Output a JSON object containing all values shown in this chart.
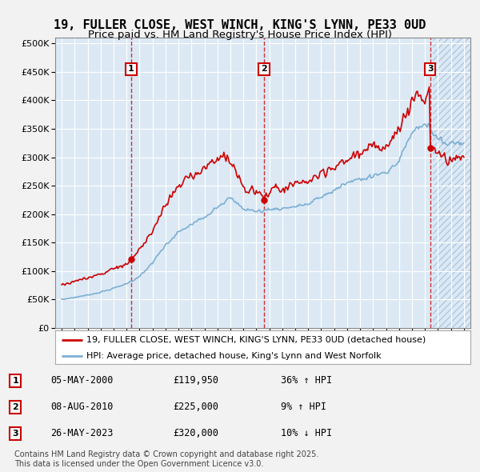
{
  "title": "19, FULLER CLOSE, WEST WINCH, KING'S LYNN, PE33 0UD",
  "subtitle": "Price paid vs. HM Land Registry's House Price Index (HPI)",
  "property_label": "19, FULLER CLOSE, WEST WINCH, KING'S LYNN, PE33 0UD (detached house)",
  "hpi_label": "HPI: Average price, detached house, King's Lynn and West Norfolk",
  "copyright_text": "Contains HM Land Registry data © Crown copyright and database right 2025.\nThis data is licensed under the Open Government Licence v3.0.",
  "transactions": [
    {
      "num": 1,
      "date": "05-MAY-2000",
      "price": 119950,
      "pct": "36%",
      "dir": "↑",
      "rel": "HPI",
      "year": 2000.35
    },
    {
      "num": 2,
      "date": "08-AUG-2010",
      "price": 225000,
      "pct": "9%",
      "dir": "↑",
      "rel": "HPI",
      "year": 2010.6
    },
    {
      "num": 3,
      "date": "26-MAY-2023",
      "price": 320000,
      "pct": "10%",
      "dir": "↓",
      "rel": "HPI",
      "year": 2023.4
    }
  ],
  "ylim": [
    0,
    510000
  ],
  "yticks": [
    0,
    50000,
    100000,
    150000,
    200000,
    250000,
    300000,
    350000,
    400000,
    450000,
    500000
  ],
  "xlim": [
    1994.5,
    2026.5
  ],
  "background_color": "#dce9f5",
  "hatch_start": 2023.6,
  "grid_color": "#ffffff",
  "red_line_color": "#cc0000",
  "blue_line_color": "#7bafd4",
  "vline_color": "#cc0000",
  "transaction_box_color": "#cc0000",
  "title_fontsize": 11,
  "subtitle_fontsize": 9.5,
  "legend_fontsize": 8,
  "table_fontsize": 8.5
}
